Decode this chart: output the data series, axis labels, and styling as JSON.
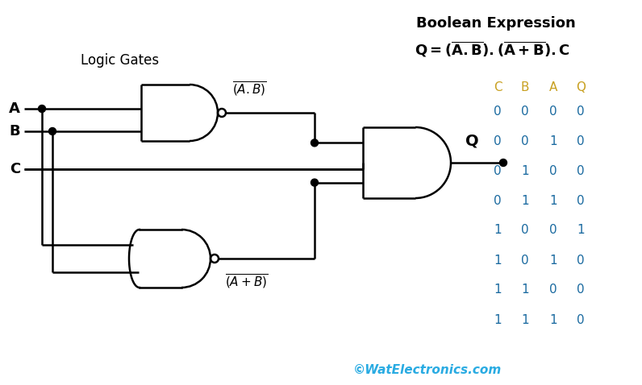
{
  "bg_color": "#ffffff",
  "watermark": "©WatElectronics.com",
  "watermark_color": "#29abe2",
  "truth_table": {
    "headers": [
      "C",
      "B",
      "A",
      "Q"
    ],
    "header_color": "#c8a020",
    "data_color": "#1a6aa0",
    "rows": [
      [
        0,
        0,
        0,
        0
      ],
      [
        0,
        0,
        1,
        0
      ],
      [
        0,
        1,
        0,
        0
      ],
      [
        0,
        1,
        1,
        0
      ],
      [
        1,
        0,
        0,
        1
      ],
      [
        1,
        0,
        1,
        0
      ],
      [
        1,
        1,
        0,
        0
      ],
      [
        1,
        1,
        1,
        0
      ]
    ]
  }
}
